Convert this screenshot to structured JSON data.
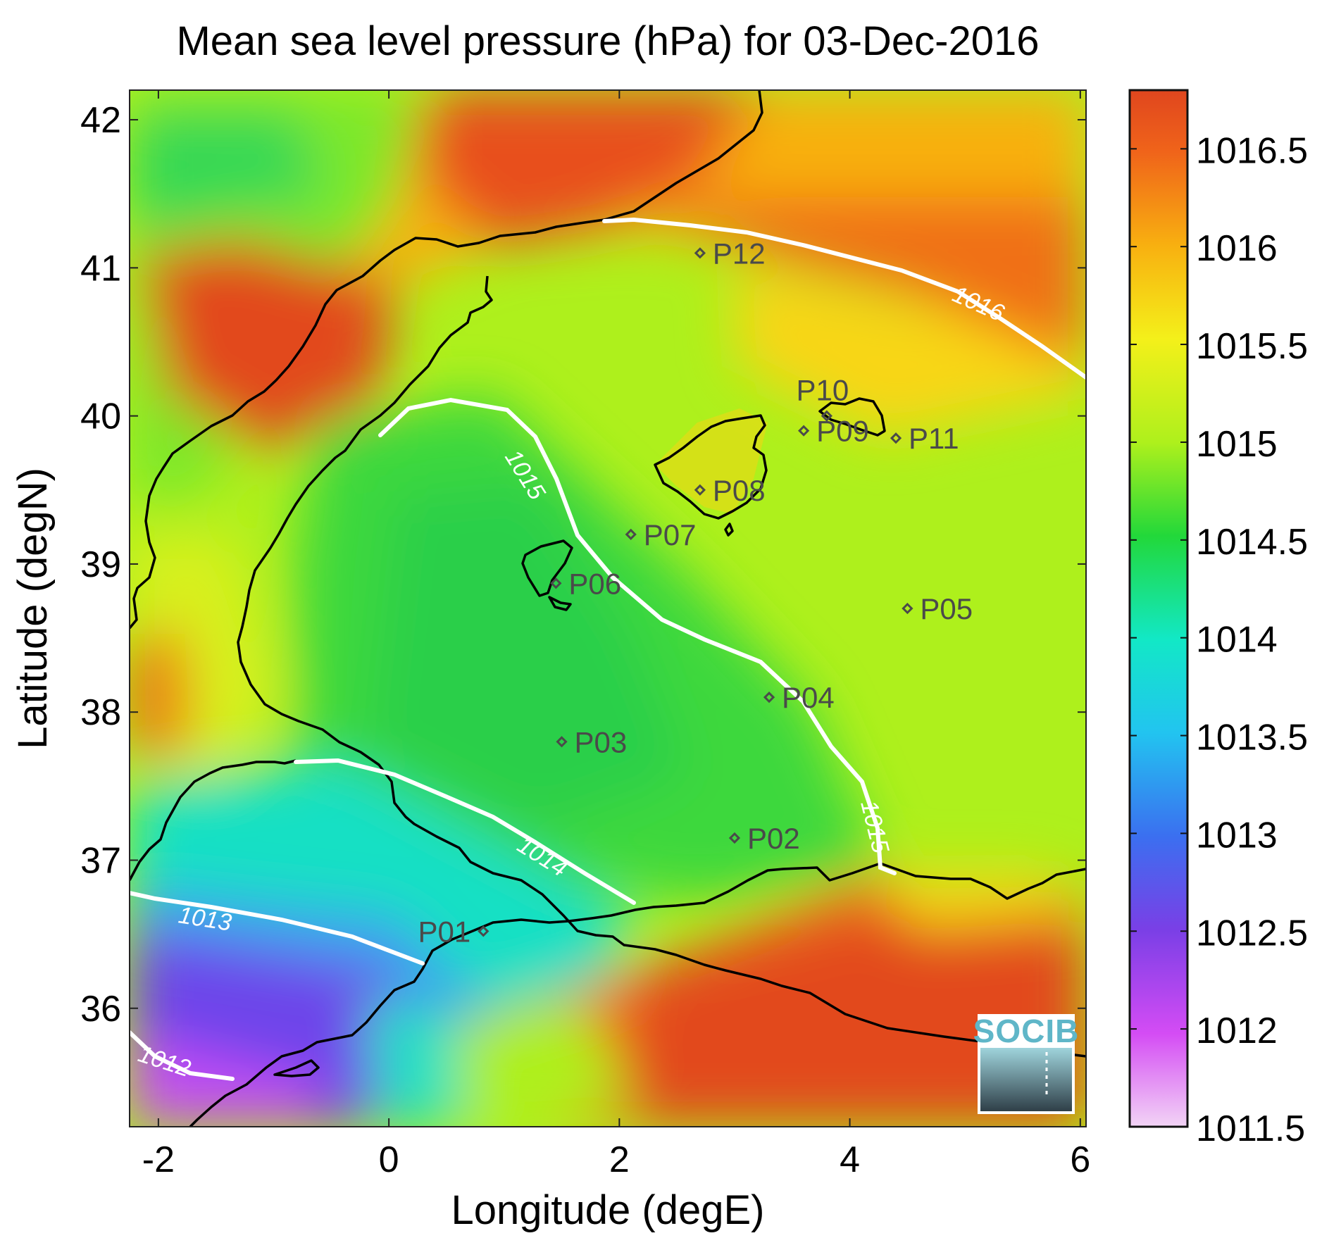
{
  "chart_data": {
    "type": "heatmap",
    "title": "Mean sea level pressure (hPa) for 03-Dec-2016",
    "xlabel": "Longitude (degE)",
    "ylabel": "Latitude (degN)",
    "xlim": [
      -2.25,
      6.05
    ],
    "ylim": [
      35.2,
      42.2
    ],
    "x_ticks": [
      "-2",
      "0",
      "2",
      "4",
      "6"
    ],
    "y_ticks": [
      "36",
      "37",
      "38",
      "39",
      "40",
      "41",
      "42"
    ],
    "colorbar": {
      "range": [
        1011.5,
        1016.8
      ],
      "ticks": [
        "1011.5",
        "1012",
        "1012.5",
        "1013",
        "1013.5",
        "1014",
        "1014.5",
        "1015",
        "1015.5",
        "1016",
        "1016.5"
      ],
      "colors": [
        "#f2d4f5",
        "#d44cf4",
        "#7a3fe6",
        "#3b6ff0",
        "#22c4f0",
        "#12e8c6",
        "#22d83a",
        "#aef01c",
        "#f4f01a",
        "#f8b010",
        "#f0641a",
        "#e0461e"
      ]
    },
    "contour_labels": [
      "1012",
      "1013",
      "1014",
      "1015",
      "1015",
      "1016"
    ],
    "points": [
      {
        "name": "P01",
        "lon": 0.82,
        "lat": 36.52
      },
      {
        "name": "P02",
        "lon": 3.0,
        "lat": 37.15
      },
      {
        "name": "P03",
        "lon": 1.5,
        "lat": 37.8
      },
      {
        "name": "P04",
        "lon": 3.3,
        "lat": 38.1
      },
      {
        "name": "P05",
        "lon": 4.5,
        "lat": 38.7
      },
      {
        "name": "P06",
        "lon": 1.45,
        "lat": 38.87
      },
      {
        "name": "P07",
        "lon": 2.1,
        "lat": 39.2
      },
      {
        "name": "P08",
        "lon": 2.7,
        "lat": 39.5
      },
      {
        "name": "P09",
        "lon": 3.6,
        "lat": 39.9
      },
      {
        "name": "P10",
        "lon": 3.8,
        "lat": 40.0
      },
      {
        "name": "P11",
        "lon": 4.4,
        "lat": 39.85
      },
      {
        "name": "P12",
        "lon": 2.7,
        "lat": 41.1
      }
    ]
  },
  "logo": {
    "text": "SOCIB"
  }
}
